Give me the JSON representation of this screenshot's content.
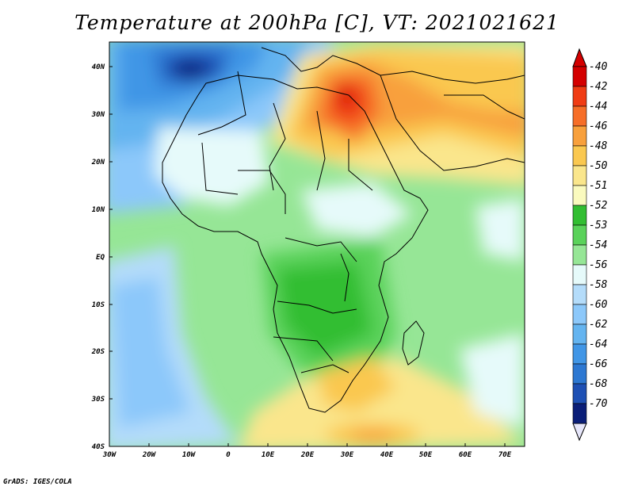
{
  "title": "Temperature at 200hPa [C], VT: 2021021621",
  "credit": "GrADS: IGES/COLA",
  "axes": {
    "x_ticks": [
      "30W",
      "20W",
      "10W",
      "0",
      "10E",
      "20E",
      "30E",
      "40E",
      "50E",
      "60E",
      "70E"
    ],
    "y_ticks": [
      "40N",
      "30N",
      "20N",
      "10N",
      "EQ",
      "10S",
      "20S",
      "30S",
      "40S"
    ]
  },
  "colorbar": {
    "levels": [
      "-40",
      "-42",
      "-44",
      "-46",
      "-48",
      "-50",
      "-51",
      "-52",
      "-53",
      "-54",
      "-56",
      "-58",
      "-60",
      "-62",
      "-64",
      "-66",
      "-68",
      "-70"
    ],
    "colors": [
      "#d40000",
      "#f03c14",
      "#f66e28",
      "#f8a03c",
      "#fac850",
      "#fae68c",
      "#fafabe",
      "#32be32",
      "#5ad25a",
      "#96e696",
      "#e6fafa",
      "#b4dcfa",
      "#8cc8fa",
      "#64b4f0",
      "#4196e6",
      "#2d78d2",
      "#1e50b4",
      "#0a1e78"
    ]
  }
}
